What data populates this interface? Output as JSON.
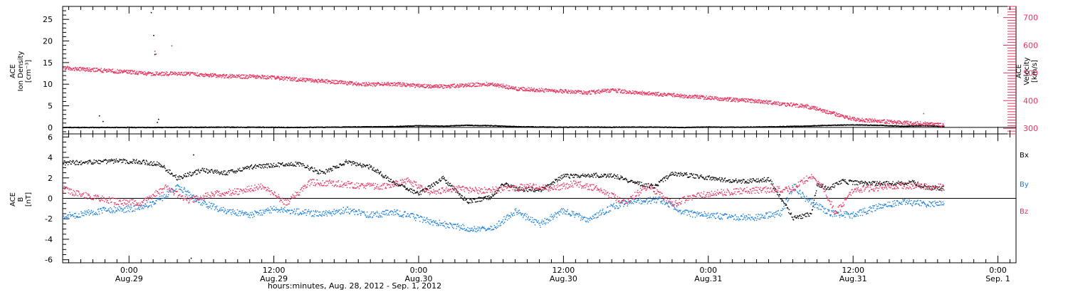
{
  "figure": {
    "xlabel": "hours:minutes, Aug. 28, 2012 - Sep.  1, 2012"
  },
  "colors": {
    "black": "#000000",
    "pink": "#e8335f",
    "blue": "#1a7fdc"
  },
  "chart_data": [
    {
      "type": "scatter",
      "panel": "top",
      "x_unit": "hours since Aug. 28, 2012 00:00",
      "xlim": [
        18.5,
        97.5
      ],
      "xticks": [
        {
          "x": 24,
          "time": "0:00",
          "date": "Aug.29"
        },
        {
          "x": 36,
          "time": "12:00",
          "date": "Aug.29"
        },
        {
          "x": 48,
          "time": "0:00",
          "date": "Aug.30"
        },
        {
          "x": 60,
          "time": "12:00",
          "date": "Aug.30"
        },
        {
          "x": 72,
          "time": "0:00",
          "date": "Aug.31"
        },
        {
          "x": 84,
          "time": "12:00",
          "date": "Aug.31"
        },
        {
          "x": 96,
          "time": "0:00",
          "date": "Sep. 1"
        }
      ],
      "ylabel_left": [
        "ACE",
        "Ion Density",
        "[cm⁻³]"
      ],
      "ylim_left": [
        -1.5,
        28
      ],
      "yticks_left": [
        "0",
        "5",
        "10",
        "15",
        "20",
        "25"
      ],
      "ylabel_right": [
        "ACE",
        "Velocity",
        "[km/s]"
      ],
      "ylim_right": [
        280,
        740
      ],
      "yticks_right": [
        "300",
        "400",
        "500",
        "600",
        "700"
      ],
      "grid": false,
      "series": [
        {
          "axis": "left",
          "color": "black",
          "points": [
            [
              18.5,
              0.1
            ],
            [
              22,
              0.1
            ],
            [
              26,
              0.1
            ],
            [
              30,
              0.15
            ],
            [
              34,
              0.15
            ],
            [
              38,
              0.1
            ],
            [
              42,
              0.2
            ],
            [
              46,
              0.3
            ],
            [
              48,
              0.5
            ],
            [
              50,
              0.4
            ],
            [
              52,
              0.6
            ],
            [
              54,
              0.5
            ],
            [
              56,
              0.3
            ],
            [
              58,
              0.2
            ],
            [
              60,
              0.15
            ],
            [
              62,
              0.2
            ],
            [
              64,
              0.15
            ],
            [
              66,
              0.2
            ],
            [
              68,
              0.15
            ],
            [
              70,
              0.1
            ],
            [
              72,
              0.2
            ],
            [
              74,
              0.15
            ],
            [
              76,
              0.2
            ],
            [
              78,
              0.3
            ],
            [
              80,
              0.4
            ],
            [
              82,
              0.6
            ],
            [
              84,
              0.7
            ],
            [
              86,
              0.6
            ],
            [
              88,
              0.4
            ],
            [
              90,
              0.5
            ],
            [
              91.5,
              0.3
            ]
          ],
          "outliers": [
            [
              21.5,
              2.8
            ],
            [
              21.8,
              1.5
            ],
            [
              25.8,
              26.7
            ],
            [
              26.0,
              21.4
            ],
            [
              26.1,
              17.0
            ],
            [
              26.3,
              1.3
            ],
            [
              26.4,
              2.0
            ]
          ]
        },
        {
          "axis": "right",
          "color": "pink",
          "points": [
            [
              18.5,
              520
            ],
            [
              20,
              515
            ],
            [
              22,
              510
            ],
            [
              24,
              505
            ],
            [
              26,
              498
            ],
            [
              28,
              500
            ],
            [
              30,
              495
            ],
            [
              32,
              490
            ],
            [
              34,
              488
            ],
            [
              36,
              485
            ],
            [
              38,
              478
            ],
            [
              40,
              472
            ],
            [
              42,
              465
            ],
            [
              44,
              460
            ],
            [
              46,
              462
            ],
            [
              48,
              455
            ],
            [
              50,
              452
            ],
            [
              52,
              458
            ],
            [
              54,
              462
            ],
            [
              56,
              445
            ],
            [
              58,
              440
            ],
            [
              60,
              435
            ],
            [
              62,
              430
            ],
            [
              64,
              440
            ],
            [
              66,
              430
            ],
            [
              68,
              425
            ],
            [
              70,
              418
            ],
            [
              72,
              412
            ],
            [
              74,
              405
            ],
            [
              76,
              400
            ],
            [
              78,
              390
            ],
            [
              80,
              382
            ],
            [
              82,
              360
            ],
            [
              84,
              335
            ],
            [
              86,
              328
            ],
            [
              88,
              322
            ],
            [
              90,
              318
            ],
            [
              91.5,
              312
            ]
          ],
          "outliers": [
            [
              26.1,
              580
            ],
            [
              26.2,
              570
            ],
            [
              27.5,
              600
            ],
            [
              89.8,
              355
            ]
          ]
        }
      ]
    },
    {
      "type": "scatter",
      "panel": "bottom",
      "x_unit": "hours since Aug. 28, 2012 00:00",
      "xlim": [
        18.5,
        97.5
      ],
      "xticks": [
        {
          "x": 24,
          "time": "0:00",
          "date": "Aug.29"
        },
        {
          "x": 36,
          "time": "12:00",
          "date": "Aug.29"
        },
        {
          "x": 48,
          "time": "0:00",
          "date": "Aug.30"
        },
        {
          "x": 60,
          "time": "12:00",
          "date": "Aug.30"
        },
        {
          "x": 72,
          "time": "0:00",
          "date": "Aug.31"
        },
        {
          "x": 84,
          "time": "12:00",
          "date": "Aug.31"
        },
        {
          "x": 96,
          "time": "0:00",
          "date": "Sep. 1"
        }
      ],
      "ylabel": [
        "ACE",
        "B",
        "[nT]"
      ],
      "ylim": [
        -6.3,
        6.3
      ],
      "yticks": [
        "-6",
        "-4",
        "-2",
        "0",
        "2",
        "4",
        "6"
      ],
      "grid": false,
      "legend_placement": "right",
      "series": [
        {
          "name": "Bx",
          "color": "black",
          "points": [
            [
              18.5,
              3.5
            ],
            [
              21,
              3.6
            ],
            [
              23,
              3.7
            ],
            [
              25,
              3.6
            ],
            [
              26.5,
              3.4
            ],
            [
              28,
              2.0
            ],
            [
              30,
              2.8
            ],
            [
              32,
              2.5
            ],
            [
              34,
              3.1
            ],
            [
              36,
              3.3
            ],
            [
              38,
              3.4
            ],
            [
              40,
              2.5
            ],
            [
              42,
              3.6
            ],
            [
              44,
              3.1
            ],
            [
              46,
              1.5
            ],
            [
              48,
              0.5
            ],
            [
              50,
              2.0
            ],
            [
              52,
              -0.3
            ],
            [
              54,
              0.2
            ],
            [
              55,
              1.5
            ],
            [
              56,
              1.0
            ],
            [
              58,
              0.8
            ],
            [
              60,
              2.2
            ],
            [
              62,
              2.3
            ],
            [
              64,
              2.3
            ],
            [
              66,
              1.5
            ],
            [
              67.5,
              1.2
            ],
            [
              69,
              2.5
            ],
            [
              71,
              2.2
            ],
            [
              73,
              1.9
            ],
            [
              75,
              1.7
            ],
            [
              77,
              1.9
            ],
            [
              79,
              -1.9
            ],
            [
              80.5,
              -1.5
            ],
            [
              81,
              1.4
            ],
            [
              82,
              1.0
            ],
            [
              83,
              1.7
            ],
            [
              85,
              1.5
            ],
            [
              87,
              1.5
            ],
            [
              89,
              1.6
            ],
            [
              90,
              1.1
            ],
            [
              91.5,
              1.0
            ]
          ],
          "outliers": [
            [
              29.1,
              -5.8
            ],
            [
              29.3,
              4.3
            ]
          ]
        },
        {
          "name": "By",
          "color": "blue",
          "points": [
            [
              18.5,
              -1.7
            ],
            [
              20,
              -1.5
            ],
            [
              22,
              -1.1
            ],
            [
              24,
              -1.0
            ],
            [
              26,
              -0.5
            ],
            [
              28,
              1.2
            ],
            [
              30,
              -0.4
            ],
            [
              32,
              -1.2
            ],
            [
              34,
              -1.6
            ],
            [
              36,
              -1.0
            ],
            [
              38,
              -1.3
            ],
            [
              40,
              -1.5
            ],
            [
              42,
              -1.1
            ],
            [
              44,
              -1.6
            ],
            [
              46,
              -1.3
            ],
            [
              48,
              -1.9
            ],
            [
              50,
              -2.5
            ],
            [
              52,
              -2.9
            ],
            [
              54,
              -3.0
            ],
            [
              56,
              -1.2
            ],
            [
              58,
              -2.5
            ],
            [
              60,
              -1.1
            ],
            [
              61,
              -1.6
            ],
            [
              62,
              -2.1
            ],
            [
              64,
              -0.8
            ],
            [
              66,
              -0.2
            ],
            [
              68,
              -0.1
            ],
            [
              70,
              -1.4
            ],
            [
              72,
              -1.6
            ],
            [
              74,
              -1.8
            ],
            [
              76,
              -1.8
            ],
            [
              78,
              -1.4
            ],
            [
              79,
              1.2
            ],
            [
              80,
              0.1
            ],
            [
              81,
              -0.7
            ],
            [
              82,
              -1.4
            ],
            [
              84,
              -1.6
            ],
            [
              86,
              -0.8
            ],
            [
              88,
              -0.3
            ],
            [
              90,
              -0.5
            ],
            [
              91.5,
              -0.4
            ]
          ]
        },
        {
          "name": "Bz",
          "color": "pink",
          "points": [
            [
              18.5,
              1.0
            ],
            [
              19.5,
              0.5
            ],
            [
              21,
              0.2
            ],
            [
              23,
              -0.3
            ],
            [
              25,
              -0.4
            ],
            [
              27,
              1.1
            ],
            [
              29,
              -0.2
            ],
            [
              31,
              0.5
            ],
            [
              33,
              0.7
            ],
            [
              35,
              1.2
            ],
            [
              37,
              -0.4
            ],
            [
              39,
              1.6
            ],
            [
              41,
              1.5
            ],
            [
              43,
              1.3
            ],
            [
              45,
              1.2
            ],
            [
              47,
              1.8
            ],
            [
              49,
              0.6
            ],
            [
              51,
              1.0
            ],
            [
              53,
              0.8
            ],
            [
              55,
              0.9
            ],
            [
              57,
              1.2
            ],
            [
              59,
              1.0
            ],
            [
              61,
              1.5
            ],
            [
              63,
              0.9
            ],
            [
              65,
              -0.4
            ],
            [
              67,
              1.3
            ],
            [
              69,
              -0.5
            ],
            [
              71,
              0.3
            ],
            [
              73,
              0.6
            ],
            [
              75,
              0.8
            ],
            [
              77,
              0.9
            ],
            [
              79,
              1.0
            ],
            [
              80.5,
              2.3
            ],
            [
              81.5,
              1.1
            ],
            [
              82.5,
              -1.4
            ],
            [
              84,
              0.9
            ],
            [
              86,
              1.1
            ],
            [
              88,
              1.3
            ],
            [
              90,
              1.2
            ],
            [
              91.5,
              1.1
            ]
          ]
        }
      ]
    }
  ]
}
